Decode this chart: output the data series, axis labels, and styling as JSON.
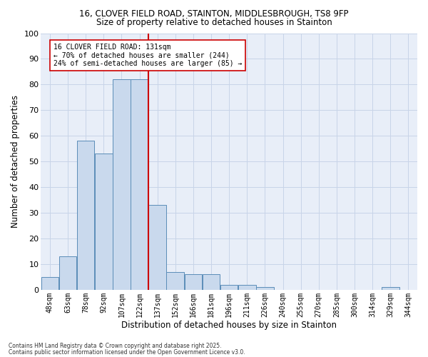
{
  "title_line1": "16, CLOVER FIELD ROAD, STAINTON, MIDDLESBROUGH, TS8 9FP",
  "title_line2": "Size of property relative to detached houses in Stainton",
  "xlabel": "Distribution of detached houses by size in Stainton",
  "ylabel": "Number of detached properties",
  "bar_labels": [
    "48sqm",
    "63sqm",
    "78sqm",
    "92sqm",
    "107sqm",
    "122sqm",
    "137sqm",
    "152sqm",
    "166sqm",
    "181sqm",
    "196sqm",
    "211sqm",
    "226sqm",
    "240sqm",
    "255sqm",
    "270sqm",
    "285sqm",
    "300sqm",
    "314sqm",
    "329sqm",
    "344sqm"
  ],
  "bar_values": [
    5,
    13,
    58,
    53,
    82,
    82,
    33,
    7,
    6,
    6,
    2,
    2,
    1,
    0,
    0,
    0,
    0,
    0,
    0,
    1,
    0
  ],
  "bar_color": "#c9d9ed",
  "bar_edge_color": "#5b8db8",
  "vline_x_index": 6,
  "vline_color": "#cc0000",
  "annotation_title": "16 CLOVER FIELD ROAD: 131sqm",
  "annotation_line1": "← 70% of detached houses are smaller (244)",
  "annotation_line2": "24% of semi-detached houses are larger (85) →",
  "annotation_box_color": "#ffffff",
  "annotation_box_edge": "#cc0000",
  "grid_color": "#c8d4e8",
  "bg_color": "#e8eef8",
  "ylim": [
    0,
    100
  ],
  "yticks": [
    0,
    10,
    20,
    30,
    40,
    50,
    60,
    70,
    80,
    90,
    100
  ],
  "footer_line1": "Contains HM Land Registry data © Crown copyright and database right 2025.",
  "footer_line2": "Contains public sector information licensed under the Open Government Licence v3.0."
}
